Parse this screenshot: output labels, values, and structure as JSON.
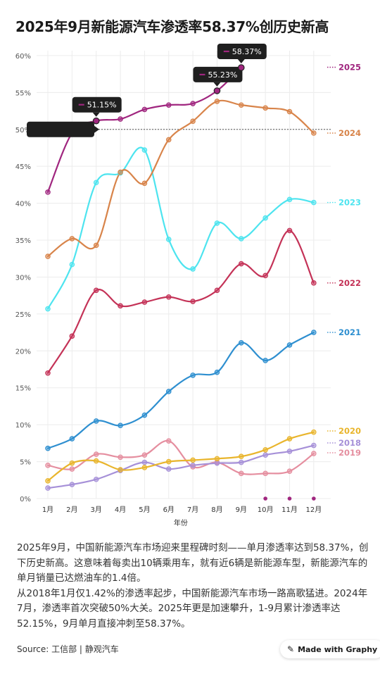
{
  "title": "2025年9月新能源汽车渗透率58.37%创历史新高",
  "description": [
    "2025年9月，中国新能源汽车市场迎来里程碑时刻——单月渗透率达到58.37%，创下历史新高。这意味着每卖出10辆乘用车，就有近6辆是新能源车型，新能源汽车的单月销量已达燃油车的1.4倍。",
    "从2018年1月仅1.42%的渗透率起步，中国新能源汽车市场一路高歌猛进。2024年7月，渗透率首次突破50%大关。2025年更是加速攀升，1-9月累计渗透率达52.15%，9月单月直接冲刺至58.37%。"
  ],
  "source": "Source: 工信部 | 静观汽车",
  "badge": {
    "label": "Made with Graphy",
    "icon": "graphy-logo-icon"
  },
  "chart_data": {
    "type": "line",
    "xlabel": "年份",
    "categories": [
      "1月",
      "2月",
      "3月",
      "4月",
      "5月",
      "6月",
      "7月",
      "8月",
      "9月",
      "10月",
      "11月",
      "12月"
    ],
    "ylim": [
      0,
      60
    ],
    "yticks": [
      "0%",
      "5%",
      "10%",
      "15%",
      "20%",
      "25%",
      "30%",
      "35%",
      "40%",
      "45%",
      "50%",
      "55%",
      "60%"
    ],
    "reference_line": {
      "value": 50,
      "style": "dashed"
    },
    "grid": true,
    "legend": "right-labels",
    "series": [
      {
        "name": "2025",
        "color": "#a0267f",
        "values": [
          41.5,
          49.5,
          51.15,
          51.4,
          52.7,
          53.3,
          53.5,
          55.23,
          58.37,
          null,
          null,
          null
        ]
      },
      {
        "name": "2024",
        "color": "#d8844a",
        "values": [
          32.8,
          35.2,
          34.3,
          44.2,
          42.7,
          48.6,
          51.1,
          53.8,
          53.3,
          52.9,
          52.4,
          49.5
        ]
      },
      {
        "name": "2023",
        "color": "#4de4ef",
        "values": [
          25.7,
          31.7,
          42.8,
          44.1,
          47.2,
          35.1,
          31.1,
          37.3,
          35.2,
          38.0,
          40.5,
          40.1
        ]
      },
      {
        "name": "2022",
        "color": "#c43257",
        "values": [
          17.0,
          22.0,
          28.2,
          26.1,
          26.6,
          27.3,
          26.7,
          28.2,
          31.8,
          30.2,
          36.3,
          29.2
        ]
      },
      {
        "name": "2021",
        "color": "#2e8fd0",
        "values": [
          6.8,
          8.1,
          10.5,
          9.9,
          11.3,
          14.5,
          16.7,
          17.1,
          21.1,
          18.7,
          20.8,
          22.5
        ]
      },
      {
        "name": "2020",
        "color": "#e9b52c",
        "values": [
          2.4,
          4.8,
          5.1,
          3.9,
          4.2,
          5.0,
          5.2,
          5.4,
          5.7,
          6.6,
          8.1,
          9.0
        ]
      },
      {
        "name": "2018",
        "color": "#a690d8",
        "values": [
          1.42,
          1.9,
          2.6,
          3.8,
          4.9,
          4.0,
          4.5,
          4.8,
          4.9,
          5.9,
          6.4,
          7.2
        ]
      },
      {
        "name": "2019",
        "color": "#e58e9f",
        "values": [
          4.5,
          4.0,
          6.0,
          5.6,
          5.9,
          7.8,
          4.3,
          4.9,
          3.4,
          3.4,
          3.7,
          6.1
        ]
      }
    ],
    "callouts": [
      {
        "series": "2025",
        "category": "3月",
        "text": "51.15%"
      },
      {
        "series": "2025",
        "category": "8月",
        "text": "55.23%"
      },
      {
        "series": "2025",
        "category": "9月",
        "text": "58.37%"
      },
      {
        "series": "2025",
        "category": "2月",
        "text": ""
      }
    ],
    "empty_markers": {
      "series": "2025",
      "categories": [
        "10月",
        "11月",
        "12月"
      ]
    }
  }
}
